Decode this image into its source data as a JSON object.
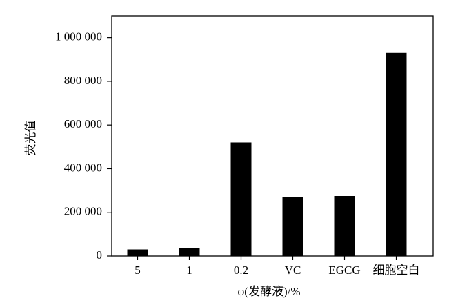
{
  "chart_data": {
    "type": "bar",
    "xlabel": "φ(发酵液)/%",
    "ylabel": "荧光值",
    "categories": [
      "5",
      "1",
      "0.2",
      "VC",
      "EGCG",
      "细胞空白"
    ],
    "values": [
      30000,
      35000,
      520000,
      270000,
      275000,
      930000
    ],
    "color": "#000000",
    "ylim": [
      0,
      1100000
    ],
    "yticks": [
      0,
      {
        "value": 200000,
        "label": "200 000"
      },
      {
        "value": 400000,
        "label": "400 000"
      },
      {
        "value": 600000,
        "label": "600 000"
      },
      {
        "value": 800000,
        "label": "800 000"
      },
      {
        "value": 1000000,
        "label": "1 000 000"
      }
    ],
    "grid": false
  }
}
